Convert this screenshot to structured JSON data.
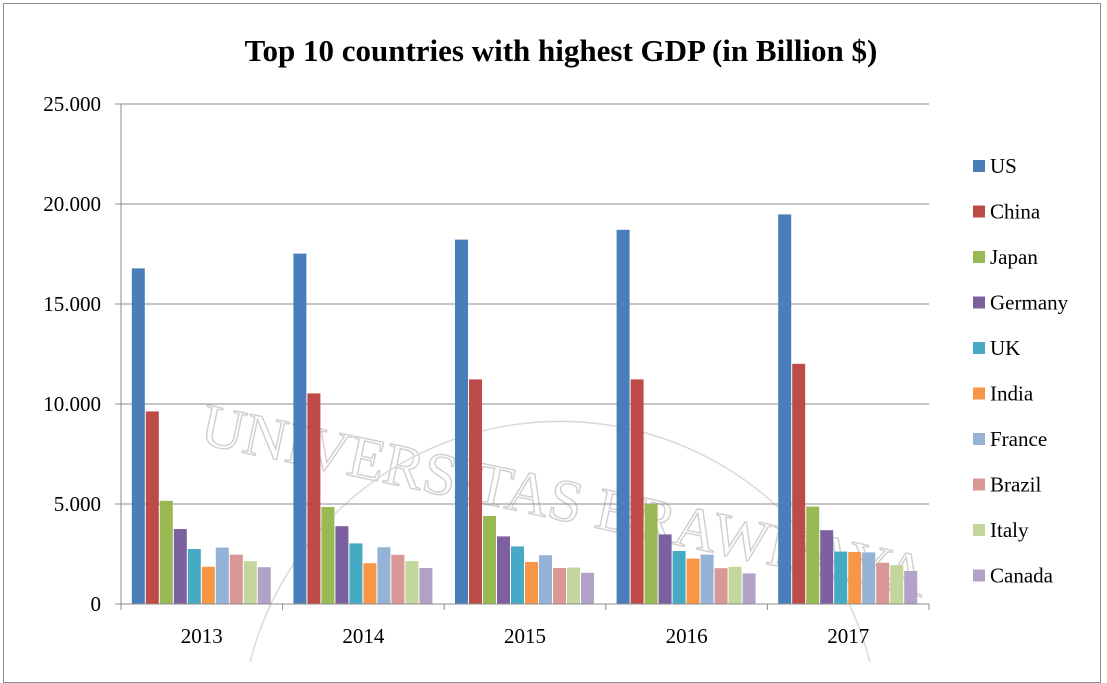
{
  "chart_data": {
    "type": "bar",
    "title": "Top 10 countries with highest GDP (in Billion $)",
    "categories": [
      "2013",
      "2014",
      "2015",
      "2016",
      "2017"
    ],
    "y_ticks": [
      "0",
      "5.000",
      "10.000",
      "15.000",
      "20.000",
      "25.000"
    ],
    "ylim": [
      0,
      25000
    ],
    "grid": true,
    "legend_position": "right",
    "series": [
      {
        "name": "US",
        "color": "#4a7ebb",
        "values": [
          16780,
          17520,
          18220,
          18710,
          19480
        ]
      },
      {
        "name": "China",
        "color": "#be4b48",
        "values": [
          9630,
          10530,
          11230,
          11230,
          12010
        ]
      },
      {
        "name": "Japan",
        "color": "#98b954",
        "values": [
          5160,
          4850,
          4400,
          5000,
          4870
        ]
      },
      {
        "name": "Germany",
        "color": "#7d60a0",
        "values": [
          3750,
          3890,
          3380,
          3480,
          3690
        ]
      },
      {
        "name": "UK",
        "color": "#46aac5",
        "values": [
          2750,
          3030,
          2880,
          2650,
          2620
        ]
      },
      {
        "name": "India",
        "color": "#f79646",
        "values": [
          1860,
          2040,
          2100,
          2270,
          2600
        ]
      },
      {
        "name": "France",
        "color": "#95b3d7",
        "values": [
          2820,
          2840,
          2440,
          2470,
          2580
        ]
      },
      {
        "name": "Brazil",
        "color": "#d99795",
        "values": [
          2470,
          2460,
          1800,
          1790,
          2060
        ]
      },
      {
        "name": "Italy",
        "color": "#c3d69b",
        "values": [
          2140,
          2150,
          1820,
          1860,
          1940
        ]
      },
      {
        "name": "Canada",
        "color": "#b3a2c7",
        "values": [
          1840,
          1800,
          1560,
          1530,
          1650
        ]
      }
    ]
  },
  "watermark": "UNIVERSITAS BRAWIJAYA"
}
